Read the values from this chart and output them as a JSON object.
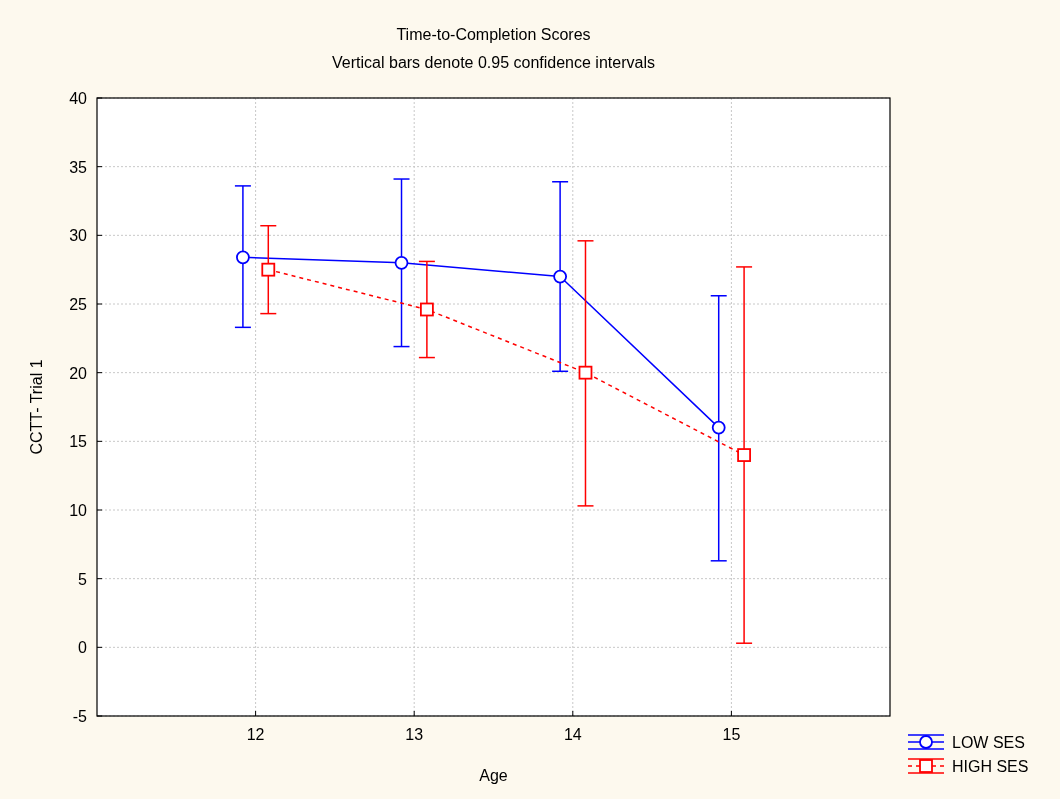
{
  "chart_data": {
    "type": "line",
    "title": "Time-to-Completion Scores",
    "subtitle": "Vertical bars denote 0.95 confidence intervals",
    "xlabel": "Age",
    "ylabel": "CCTT- Trial 1",
    "xlim": [
      11,
      16
    ],
    "xticks": [
      12,
      13,
      14,
      15
    ],
    "ylim": [
      -5,
      40
    ],
    "yticks": [
      -5,
      0,
      5,
      10,
      15,
      20,
      25,
      30,
      35,
      40
    ],
    "grid": true,
    "legend": "bottom right",
    "series": [
      {
        "name": "LOW SES",
        "color": "#0000ff",
        "marker": "circle",
        "line_style": "solid",
        "x": [
          11.92,
          12.92,
          13.92,
          14.92
        ],
        "values": [
          28.4,
          28.0,
          27.0,
          16.0
        ],
        "errors": [
          [
            23.3,
            33.6
          ],
          [
            21.9,
            34.1
          ],
          [
            20.1,
            33.9
          ],
          [
            6.3,
            25.6
          ]
        ]
      },
      {
        "name": "HIGH SES",
        "color": "#ff0000",
        "marker": "square",
        "line_style": "dashed",
        "x": [
          12.08,
          13.08,
          14.08,
          15.08
        ],
        "values": [
          27.5,
          24.6,
          20.0,
          14.0
        ],
        "errors": [
          [
            24.3,
            30.7
          ],
          [
            21.1,
            28.1
          ],
          [
            10.3,
            29.6
          ],
          [
            0.3,
            27.7
          ]
        ]
      }
    ]
  }
}
